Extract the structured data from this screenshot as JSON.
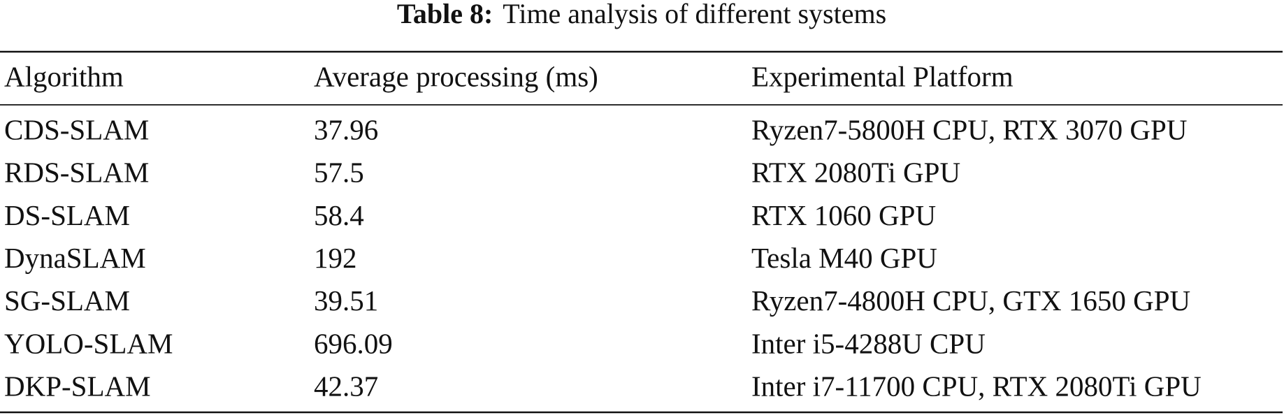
{
  "caption": {
    "label": "Table 8:",
    "text": "Time analysis of different systems"
  },
  "table": {
    "header": [
      "Algorithm",
      "Average processing (ms)",
      "Experimental Platform"
    ],
    "rows": [
      [
        "CDS-SLAM",
        "37.96",
        "Ryzen7-5800H CPU, RTX 3070 GPU"
      ],
      [
        "RDS-SLAM",
        "57.5",
        "RTX 2080Ti GPU"
      ],
      [
        "DS-SLAM",
        "58.4",
        "RTX 1060 GPU"
      ],
      [
        "DynaSLAM",
        "192",
        "Tesla M40 GPU"
      ],
      [
        "SG-SLAM",
        "39.51",
        "Ryzen7-4800H CPU, GTX 1650 GPU"
      ],
      [
        "YOLO-SLAM",
        "696.09",
        "Inter i5-4288U CPU"
      ],
      [
        "DKP-SLAM",
        "42.37",
        "Inter i7-11700 CPU, RTX 2080Ti GPU"
      ]
    ]
  }
}
